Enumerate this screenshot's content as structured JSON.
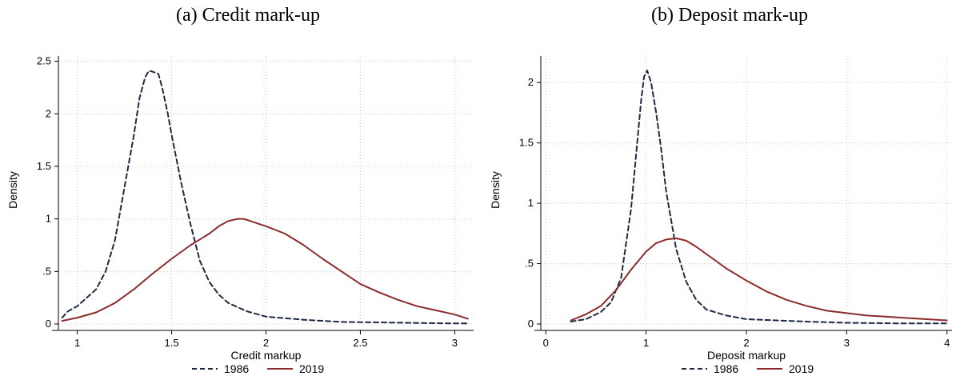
{
  "panels": {
    "a": {
      "title": "(a) Credit mark-up"
    },
    "b": {
      "title": "(b) Deposit mark-up"
    }
  },
  "colors": {
    "series_1986": "#1f2a44",
    "series_2019": "#8b2b2b",
    "grid": "#c8c8c8"
  },
  "chart_data": [
    {
      "type": "line",
      "title": "(a) Credit mark-up",
      "xlabel": "Credit markup",
      "ylabel": "Density",
      "xlim": [
        0.9,
        3.1
      ],
      "ylim": [
        0,
        2.55
      ],
      "xticks": [
        1,
        1.5,
        2,
        2.5,
        3
      ],
      "xtick_labels": [
        "1",
        "1.5",
        "2",
        "2.5",
        "3"
      ],
      "yticks": [
        0,
        0.5,
        1,
        1.5,
        2,
        2.5
      ],
      "ytick_labels": [
        "0",
        ".5",
        "1",
        "1.5",
        "2",
        "2.5"
      ],
      "grid": true,
      "legend": "bottom",
      "series": [
        {
          "name": "1986",
          "style": "dashed",
          "x": [
            0.92,
            0.95,
            1.0,
            1.05,
            1.1,
            1.15,
            1.2,
            1.25,
            1.3,
            1.33,
            1.36,
            1.38,
            1.4,
            1.43,
            1.45,
            1.48,
            1.5,
            1.55,
            1.6,
            1.65,
            1.7,
            1.75,
            1.8,
            1.9,
            2.0,
            2.2,
            2.4,
            2.6,
            2.8,
            3.0,
            3.07
          ],
          "y": [
            0.06,
            0.12,
            0.17,
            0.25,
            0.33,
            0.5,
            0.8,
            1.3,
            1.8,
            2.15,
            2.35,
            2.41,
            2.4,
            2.38,
            2.25,
            2.0,
            1.8,
            1.35,
            0.95,
            0.6,
            0.4,
            0.28,
            0.2,
            0.12,
            0.07,
            0.04,
            0.02,
            0.015,
            0.01,
            0.005,
            0.005
          ]
        },
        {
          "name": "2019",
          "style": "solid",
          "x": [
            0.92,
            1.0,
            1.1,
            1.2,
            1.3,
            1.4,
            1.5,
            1.6,
            1.7,
            1.75,
            1.8,
            1.85,
            1.88,
            1.9,
            2.0,
            2.1,
            2.2,
            2.3,
            2.4,
            2.5,
            2.6,
            2.7,
            2.8,
            2.9,
            3.0,
            3.07
          ],
          "y": [
            0.03,
            0.06,
            0.11,
            0.2,
            0.33,
            0.48,
            0.62,
            0.75,
            0.86,
            0.93,
            0.98,
            1.0,
            1.0,
            0.99,
            0.93,
            0.86,
            0.75,
            0.62,
            0.5,
            0.38,
            0.3,
            0.23,
            0.17,
            0.13,
            0.09,
            0.05
          ]
        }
      ]
    },
    {
      "type": "line",
      "title": "(b) Deposit mark-up",
      "xlabel": "Deposit markup",
      "ylabel": "Density",
      "xlim": [
        -0.05,
        4.05
      ],
      "ylim": [
        0,
        2.22
      ],
      "xticks": [
        0,
        1,
        2,
        3,
        4
      ],
      "xtick_labels": [
        "0",
        "1",
        "2",
        "3",
        "4"
      ],
      "yticks": [
        0,
        0.5,
        1,
        1.5,
        2
      ],
      "ytick_labels": [
        "0",
        ".5",
        "1",
        "1.5",
        "2"
      ],
      "grid": true,
      "legend": "bottom",
      "series": [
        {
          "name": "1986",
          "style": "dashed",
          "x": [
            0.25,
            0.4,
            0.55,
            0.65,
            0.75,
            0.85,
            0.9,
            0.95,
            0.98,
            1.01,
            1.05,
            1.1,
            1.15,
            1.2,
            1.3,
            1.4,
            1.5,
            1.6,
            1.8,
            2.0,
            2.3,
            2.6,
            3.0,
            3.5,
            4.0
          ],
          "y": [
            0.02,
            0.04,
            0.1,
            0.18,
            0.38,
            0.95,
            1.4,
            1.85,
            2.05,
            2.1,
            2.0,
            1.75,
            1.45,
            1.1,
            0.62,
            0.35,
            0.2,
            0.12,
            0.07,
            0.04,
            0.03,
            0.02,
            0.01,
            0.005,
            0.005
          ]
        },
        {
          "name": "2019",
          "style": "solid",
          "x": [
            0.25,
            0.4,
            0.55,
            0.7,
            0.85,
            1.0,
            1.1,
            1.2,
            1.3,
            1.4,
            1.5,
            1.6,
            1.7,
            1.8,
            2.0,
            2.2,
            2.4,
            2.6,
            2.8,
            3.0,
            3.2,
            3.4,
            3.6,
            3.8,
            4.0
          ],
          "y": [
            0.03,
            0.08,
            0.15,
            0.28,
            0.45,
            0.6,
            0.67,
            0.7,
            0.71,
            0.69,
            0.64,
            0.58,
            0.52,
            0.46,
            0.36,
            0.27,
            0.2,
            0.15,
            0.11,
            0.09,
            0.07,
            0.06,
            0.05,
            0.04,
            0.03
          ]
        }
      ]
    }
  ]
}
